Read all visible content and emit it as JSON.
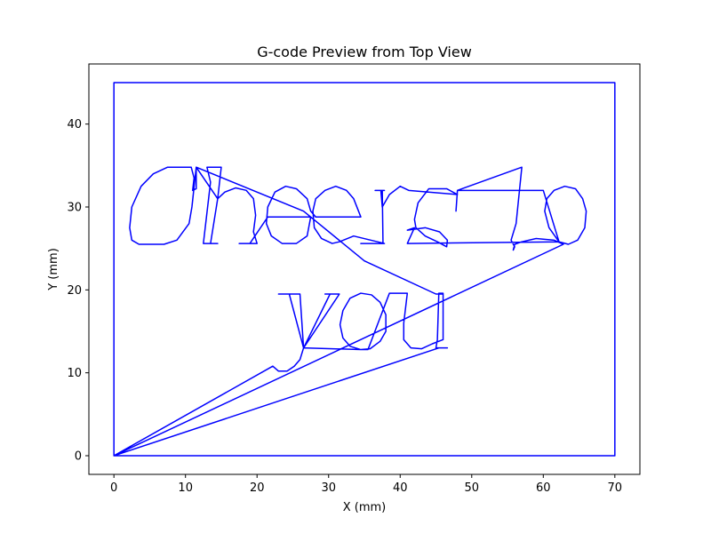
{
  "chart_data": {
    "type": "line",
    "title": "G-code Preview from Top View",
    "xlabel": "X (mm)",
    "ylabel": "Y (mm)",
    "xlim": [
      -3.5,
      73.5
    ],
    "ylim": [
      -2.25,
      47.25
    ],
    "xticks": [
      0,
      10,
      20,
      30,
      40,
      50,
      60,
      70
    ],
    "yticks": [
      0,
      10,
      20,
      30,
      40
    ],
    "grid": false,
    "legend": false,
    "series": [
      {
        "color": "#0000ff",
        "points": [
          [
            0,
            0
          ],
          [
            0,
            45
          ],
          [
            70,
            45
          ],
          [
            70,
            0
          ],
          [
            0,
            0
          ],
          [
            22.2,
            10.8
          ],
          [
            23.0,
            10.2
          ],
          [
            24.2,
            10.2
          ],
          [
            25.2,
            10.8
          ],
          [
            26.0,
            11.6
          ],
          [
            26.5,
            13.0
          ],
          [
            24.5,
            19.5
          ],
          [
            23.0,
            19.5
          ],
          [
            26.0,
            19.5
          ],
          [
            26.5,
            13.0
          ],
          [
            30.2,
            19.5
          ],
          [
            29.5,
            19.5
          ],
          [
            31.5,
            19.5
          ],
          [
            26.5,
            13.0
          ],
          [
            34.5,
            12.8
          ],
          [
            33.0,
            13.2
          ],
          [
            32.0,
            14.2
          ],
          [
            31.6,
            15.8
          ],
          [
            32.0,
            17.5
          ],
          [
            33.0,
            19.0
          ],
          [
            34.5,
            19.6
          ],
          [
            36.0,
            19.4
          ],
          [
            37.2,
            18.5
          ],
          [
            38.0,
            17.0
          ],
          [
            38.0,
            15.0
          ],
          [
            37.2,
            13.8
          ],
          [
            35.8,
            12.9
          ],
          [
            34.5,
            12.8
          ],
          [
            35.5,
            12.8
          ],
          [
            38.5,
            19.6
          ],
          [
            41.0,
            19.6
          ],
          [
            40.5,
            16.0
          ],
          [
            40.5,
            14.0
          ],
          [
            41.5,
            13.0
          ],
          [
            43.0,
            12.9
          ],
          [
            44.5,
            13.5
          ],
          [
            46.0,
            14.0
          ],
          [
            46.0,
            19.6
          ],
          [
            45.4,
            19.6
          ],
          [
            45.2,
            14.0
          ],
          [
            45.0,
            13.0
          ],
          [
            46.6,
            13.0
          ],
          [
            45.4,
            13.0
          ],
          [
            0,
            0
          ],
          [
            62.8,
            25.5
          ],
          [
            61.5,
            26.0
          ],
          [
            59.0,
            26.2
          ],
          [
            57.0,
            25.8
          ],
          [
            56.0,
            25.5
          ],
          [
            55.8,
            24.8
          ],
          [
            56.0,
            25.2
          ],
          [
            55.5,
            26.0
          ],
          [
            56.2,
            28.0
          ],
          [
            57.0,
            34.8
          ],
          [
            48.0,
            32.0
          ],
          [
            47.8,
            29.5
          ],
          [
            48.0,
            32.0
          ],
          [
            55.5,
            32.0
          ],
          [
            59.5,
            32.0
          ],
          [
            60.0,
            32.0
          ],
          [
            62.2,
            25.8
          ],
          [
            60.8,
            27.5
          ],
          [
            60.2,
            29.5
          ],
          [
            60.5,
            31.0
          ],
          [
            61.5,
            32.0
          ],
          [
            63.0,
            32.5
          ],
          [
            64.5,
            32.2
          ],
          [
            65.5,
            31.0
          ],
          [
            66.0,
            29.5
          ],
          [
            65.8,
            27.5
          ],
          [
            64.8,
            26.0
          ],
          [
            63.5,
            25.5
          ],
          [
            62.2,
            25.8
          ],
          [
            41.0,
            25.6
          ],
          [
            42.0,
            27.5
          ],
          [
            41.0,
            27.2
          ],
          [
            43.5,
            27.5
          ],
          [
            45.5,
            27.0
          ],
          [
            46.6,
            26.0
          ],
          [
            46.5,
            25.2
          ],
          [
            45.2,
            25.8
          ],
          [
            43.5,
            26.5
          ],
          [
            42.2,
            27.5
          ],
          [
            42.0,
            28.5
          ],
          [
            42.5,
            30.5
          ],
          [
            44.0,
            32.2
          ],
          [
            46.5,
            32.2
          ],
          [
            48.0,
            31.5
          ],
          [
            41.2,
            32.0
          ],
          [
            40.0,
            32.5
          ],
          [
            38.5,
            31.5
          ],
          [
            37.5,
            30.0
          ],
          [
            37.3,
            32.0
          ],
          [
            36.5,
            32.0
          ],
          [
            37.8,
            32.0
          ],
          [
            37.5,
            32.0
          ],
          [
            37.6,
            25.6
          ],
          [
            36.0,
            25.6
          ],
          [
            34.5,
            25.6
          ],
          [
            37.8,
            25.6
          ],
          [
            33.5,
            26.5
          ],
          [
            31.5,
            25.8
          ],
          [
            30.5,
            25.6
          ],
          [
            29.0,
            26.2
          ],
          [
            28.0,
            27.5
          ],
          [
            27.8,
            29.5
          ],
          [
            28.2,
            31.0
          ],
          [
            29.5,
            32.0
          ],
          [
            31.0,
            32.5
          ],
          [
            32.5,
            32.0
          ],
          [
            33.5,
            31.0
          ],
          [
            34.5,
            28.8
          ],
          [
            28.2,
            28.8
          ],
          [
            27.5,
            29.5
          ],
          [
            27.0,
            31.0
          ],
          [
            25.5,
            32.2
          ],
          [
            24.0,
            32.5
          ],
          [
            22.5,
            31.8
          ],
          [
            21.5,
            30.0
          ],
          [
            21.3,
            28.0
          ],
          [
            22.0,
            26.5
          ],
          [
            23.5,
            25.6
          ],
          [
            25.5,
            25.6
          ],
          [
            27.0,
            26.5
          ],
          [
            27.5,
            28.8
          ],
          [
            21.5,
            28.8
          ],
          [
            19.0,
            25.6
          ],
          [
            17.5,
            25.6
          ],
          [
            20.0,
            25.6
          ],
          [
            19.5,
            27.0
          ],
          [
            19.8,
            29.0
          ],
          [
            19.5,
            31.0
          ],
          [
            18.5,
            32.0
          ],
          [
            17.0,
            32.3
          ],
          [
            15.5,
            31.8
          ],
          [
            14.5,
            31.0
          ],
          [
            15.0,
            34.8
          ],
          [
            14.5,
            34.8
          ],
          [
            13.5,
            34.8
          ],
          [
            13.0,
            34.8
          ],
          [
            13.5,
            33.0
          ],
          [
            12.5,
            25.6
          ],
          [
            14.5,
            25.6
          ],
          [
            13.5,
            25.6
          ],
          [
            14.5,
            31.0
          ],
          [
            11.5,
            34.8
          ],
          [
            11.5,
            32.2
          ],
          [
            11.0,
            32.0
          ],
          [
            11.2,
            33.5
          ],
          [
            10.8,
            34.8
          ],
          [
            9.5,
            34.8
          ],
          [
            7.5,
            34.8
          ],
          [
            5.5,
            34.0
          ],
          [
            3.8,
            32.5
          ],
          [
            2.5,
            30.0
          ],
          [
            2.2,
            27.5
          ],
          [
            2.5,
            26.0
          ],
          [
            3.5,
            25.5
          ],
          [
            5.5,
            25.5
          ],
          [
            7.0,
            25.5
          ],
          [
            8.8,
            26.0
          ],
          [
            10.5,
            28.0
          ],
          [
            10.9,
            30.0
          ],
          [
            11.5,
            34.8
          ],
          [
            26.5,
            29.5
          ],
          [
            35.0,
            23.5
          ],
          [
            45.0,
            19.5
          ],
          [
            46.0,
            19.5
          ]
        ]
      }
    ]
  }
}
